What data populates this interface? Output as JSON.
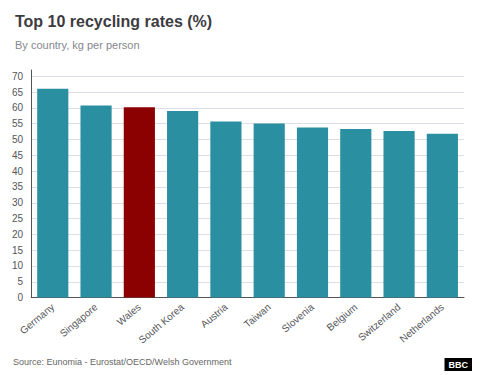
{
  "chart_data": {
    "type": "bar",
    "title": "Top 10 recycling rates (%)",
    "subtitle": "By country, kg per person",
    "source": "Source: Eunomia - Eurostat/OECD/Welsh Government",
    "annotations": [
      "BBC"
    ],
    "categories": [
      "Germany",
      "Singapore",
      "Wales",
      "South Korea",
      "Austria",
      "Taiwan",
      "Slovenia",
      "Belgium",
      "Switzerland",
      "Netherlands"
    ],
    "values": [
      66.1,
      60.8,
      60.2,
      59.0,
      55.7,
      55.1,
      53.8,
      53.3,
      52.7,
      51.8
    ],
    "colors": [
      "#2a8fa0",
      "#2a8fa0",
      "#8b0000",
      "#2a8fa0",
      "#2a8fa0",
      "#2a8fa0",
      "#2a8fa0",
      "#2a8fa0",
      "#2a8fa0",
      "#2a8fa0"
    ],
    "ylim": [
      0,
      72
    ],
    "yticks": [
      0,
      5,
      10,
      15,
      20,
      25,
      30,
      35,
      40,
      45,
      50,
      55,
      60,
      65,
      70
    ],
    "grid": true
  }
}
